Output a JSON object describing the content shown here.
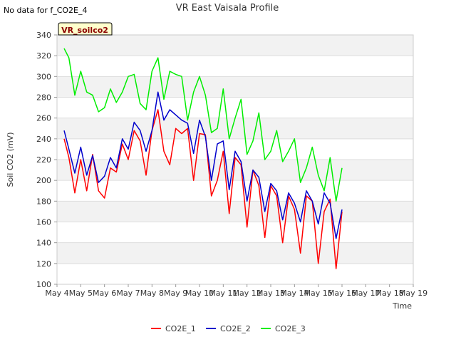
{
  "no_data_label": "No data for f_CO2E_4",
  "tag_label": "VR_soilco2",
  "chart_data": {
    "type": "line",
    "title": "VR East Vaisala Profile",
    "xlabel": "Time",
    "ylabel": "Soil CO2 (mV)",
    "xlim": [
      0,
      15
    ],
    "ylim": [
      100,
      340
    ],
    "grid": true,
    "legend_position": "bottom",
    "x_ticks": [
      0,
      1,
      2,
      3,
      4,
      5,
      6,
      7,
      8,
      9,
      10,
      11,
      12,
      13,
      14,
      15
    ],
    "x_tick_labels": [
      "May 4",
      "May 5",
      "May 6",
      "May 7",
      "May 8",
      "May 9",
      "May 10",
      "May 11",
      "May 12",
      "May 13",
      "May 14",
      "May 15",
      "May 16",
      "May 17",
      "May 18",
      "May 19"
    ],
    "y_ticks": [
      100,
      120,
      140,
      160,
      180,
      200,
      220,
      240,
      260,
      280,
      300,
      320,
      340
    ],
    "x": [
      0.3,
      0.5,
      0.75,
      1.0,
      1.25,
      1.5,
      1.75,
      2.0,
      2.25,
      2.5,
      2.75,
      3.0,
      3.25,
      3.5,
      3.75,
      4.0,
      4.25,
      4.5,
      4.75,
      5.0,
      5.25,
      5.5,
      5.75,
      6.0,
      6.25,
      6.5,
      6.75,
      7.0,
      7.25,
      7.5,
      7.75,
      8.0,
      8.25,
      8.5,
      8.75,
      9.0,
      9.25,
      9.5,
      9.75,
      10.0,
      10.25,
      10.5,
      10.75,
      11.0,
      11.25,
      11.5,
      11.75,
      12.0,
      12.25,
      12.5,
      12.75,
      13.0,
      13.25,
      13.5,
      13.75,
      14.0,
      14.2
    ],
    "series": [
      {
        "name": "CO2E_1",
        "color": "#ff0000",
        "values": [
          240,
          222,
          188,
          220,
          190,
          225,
          190,
          183,
          212,
          208,
          235,
          220,
          248,
          238,
          205,
          248,
          268,
          228,
          215,
          250,
          245,
          250,
          200,
          245,
          244,
          185,
          200,
          228,
          168,
          222,
          215,
          155,
          210,
          195,
          145,
          195,
          185,
          140,
          185,
          172,
          130,
          185,
          180,
          120,
          170,
          182,
          115,
          170,
          null,
          null,
          null,
          null,
          null,
          null,
          null,
          null,
          null
        ]
      },
      {
        "name": "CO2E_2",
        "color": "#0000cc",
        "values": [
          248,
          230,
          207,
          232,
          205,
          224,
          198,
          204,
          222,
          212,
          240,
          230,
          256,
          248,
          228,
          248,
          285,
          258,
          268,
          263,
          258,
          255,
          226,
          258,
          242,
          200,
          235,
          238,
          191,
          228,
          218,
          180,
          210,
          203,
          170,
          197,
          190,
          162,
          188,
          178,
          160,
          190,
          180,
          158,
          188,
          178,
          144,
          172,
          null,
          null,
          null,
          null,
          null,
          null,
          null,
          null,
          null
        ]
      },
      {
        "name": "CO2E_3",
        "color": "#00ee00",
        "values": [
          327,
          318,
          282,
          305,
          285,
          282,
          266,
          270,
          288,
          275,
          285,
          300,
          302,
          274,
          268,
          305,
          318,
          278,
          305,
          302,
          300,
          258,
          285,
          300,
          282,
          246,
          250,
          288,
          240,
          260,
          278,
          225,
          238,
          265,
          220,
          228,
          248,
          218,
          228,
          240,
          198,
          212,
          232,
          205,
          190,
          222,
          180,
          212,
          null,
          null,
          null,
          null,
          null,
          null,
          null,
          null,
          null
        ]
      }
    ]
  }
}
